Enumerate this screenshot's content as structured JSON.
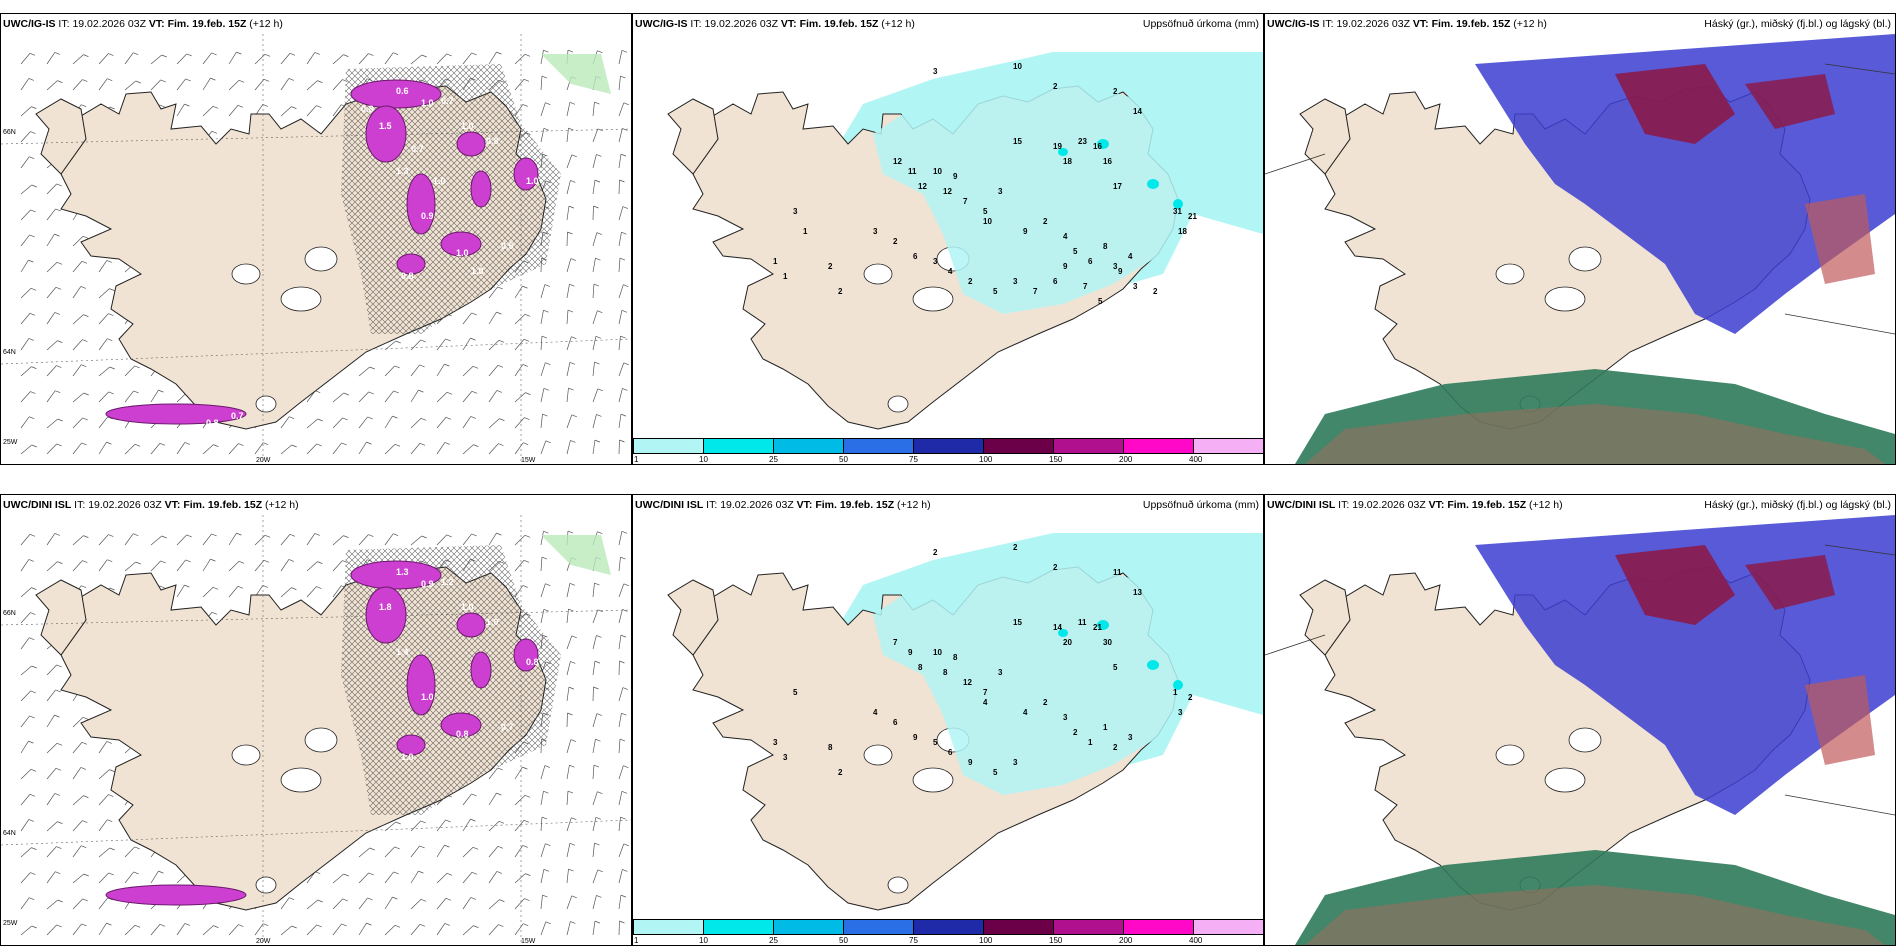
{
  "panels": {
    "top_left": {
      "model": "UWC/IG-IS",
      "it_label": "IT:",
      "it": "19.02.2026 03Z",
      "vt_label": "VT:",
      "vt": "Fim. 19.feb. 15Z",
      "lead": "(+12 h)"
    },
    "top_mid": {
      "model": "UWC/IG-IS",
      "it_label": "IT:",
      "it": "19.02.2026 03Z",
      "vt_label": "VT:",
      "vt": "Fim. 19.feb. 15Z",
      "lead": "(+12 h)",
      "field": "Uppsöfnuð úrkoma (mm)"
    },
    "top_right": {
      "model": "UWC/IG-IS",
      "it_label": "IT:",
      "it": "19.02.2026 03Z",
      "vt_label": "VT:",
      "vt": "Fim. 19.feb. 15Z",
      "lead": "(+12 h)",
      "field": "Háský (gr.), miðský (fj.bl.) og lágský (bl.)"
    },
    "bot_left": {
      "model": "UWC/DINI ISL",
      "it_label": "IT:",
      "it": "19.02.2026 03Z",
      "vt_label": "VT:",
      "vt": "Fim. 19.feb. 15Z",
      "lead": "(+12 h)"
    },
    "bot_mid": {
      "model": "UWC/DINI ISL",
      "it_label": "IT:",
      "it": "19.02.2026 03Z",
      "vt_label": "VT:",
      "vt": "Fim. 19.feb. 15Z",
      "lead": "(+12 h)",
      "field": "Uppsöfnuð úrkoma (mm)"
    },
    "bot_right": {
      "model": "UWC/DINI ISL",
      "it_label": "IT:",
      "it": "19.02.2026 03Z",
      "vt_label": "VT:",
      "vt": "Fim. 19.feb. 15Z",
      "lead": "(+12 h)",
      "field": "Háský (gr.), miðský (fj.bl.) og lágský (bl.)"
    }
  },
  "axes": {
    "lat66": "66N",
    "lat64": "64N",
    "lon25": "25W",
    "lon20": "20W",
    "lon15": "15W"
  },
  "colorbar": {
    "labels": [
      "1",
      "10",
      "25",
      "50",
      "75",
      "100",
      "150",
      "200",
      "400"
    ],
    "colors": [
      "#b2f5f5",
      "#00e8ea",
      "#00bbe6",
      "#2b6fe6",
      "#1f2aa8",
      "#6b0048",
      "#b0108e",
      "#ff08c8",
      "#f5b0f5"
    ]
  },
  "precip_top": [
    "3",
    "10",
    "2",
    "2",
    "14",
    "15",
    "19",
    "23",
    "16",
    "18",
    "16",
    "17",
    "12",
    "11",
    "10",
    "9",
    "12",
    "12",
    "7",
    "5",
    "3",
    "10",
    "9",
    "2",
    "4",
    "5",
    "6",
    "8",
    "3",
    "4",
    "31",
    "21",
    "18",
    "3",
    "1",
    "1",
    "2",
    "2",
    "3",
    "2",
    "6",
    "3",
    "4",
    "2",
    "5",
    "3",
    "7",
    "6",
    "9",
    "7",
    "5",
    "9",
    "3",
    "2",
    "1"
  ],
  "precip_bot": [
    "2",
    "2",
    "2",
    "11",
    "13",
    "15",
    "14",
    "11",
    "21",
    "20",
    "30",
    "5",
    "7",
    "9",
    "10",
    "8",
    "8",
    "8",
    "12",
    "7",
    "3",
    "4",
    "4",
    "2",
    "3",
    "2",
    "1",
    "1",
    "2",
    "3",
    "1",
    "2",
    "3",
    "5",
    "3",
    "3",
    "8",
    "2",
    "4",
    "6",
    "9",
    "5",
    "6",
    "9",
    "5",
    "3"
  ],
  "accum_top_left": [
    "0.6",
    "1.0",
    "1.5",
    "0.7",
    "1.0",
    "1.3",
    "0.9",
    "0.8",
    "1.0",
    "0.5",
    "1.0",
    "0.8",
    "0.8",
    "0.7",
    "1.0",
    "1.0",
    "0.8",
    "0.7"
  ],
  "accum_bot_left": [
    "1.3",
    "0.9",
    "1.8",
    "1.2",
    "1.0",
    "1.4",
    "1.0",
    "1.0",
    "0.8",
    "0.7",
    "0.8",
    "1.0"
  ]
}
